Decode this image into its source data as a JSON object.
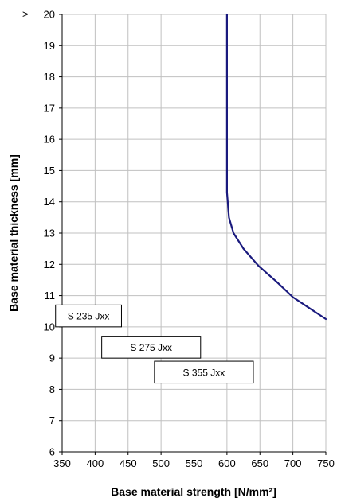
{
  "chart_data": {
    "type": "line",
    "title": "",
    "xlabel": "Base material strength [N/mm²]",
    "ylabel": "Base material thickness [mm]",
    "xlim": [
      350,
      750
    ],
    "ylim": [
      6,
      20
    ],
    "x_ticks": [
      "350",
      "400",
      "450",
      "500",
      "550",
      "600",
      "650",
      "700",
      "750"
    ],
    "y_ticks": [
      "6",
      "7",
      "8",
      "9",
      "10",
      "11",
      "12",
      "13",
      "14",
      "15",
      "16",
      "17",
      "18",
      "19",
      "20"
    ],
    "top_tick_prefix": ">",
    "grid": true,
    "legend": "none",
    "series": [
      {
        "color": "#1a1a7e",
        "points": [
          {
            "x": 600,
            "y": 20
          },
          {
            "x": 600,
            "y": 14.3
          },
          {
            "x": 603,
            "y": 13.5
          },
          {
            "x": 610,
            "y": 13.0
          },
          {
            "x": 625,
            "y": 12.5
          },
          {
            "x": 648,
            "y": 11.95
          },
          {
            "x": 675,
            "y": 11.45
          },
          {
            "x": 700,
            "y": 10.95
          },
          {
            "x": 725,
            "y": 10.6
          },
          {
            "x": 750,
            "y": 10.25
          }
        ]
      }
    ],
    "annotations": [
      {
        "text": "S 235 Jxx",
        "x_range": [
          340,
          440
        ],
        "y_range": [
          10.0,
          10.7
        ]
      },
      {
        "text": "S 275 Jxx",
        "x_range": [
          410,
          560
        ],
        "y_range": [
          9.0,
          9.7
        ]
      },
      {
        "text": "S 355 Jxx",
        "x_range": [
          490,
          640
        ],
        "y_range": [
          8.2,
          8.9
        ]
      }
    ]
  }
}
